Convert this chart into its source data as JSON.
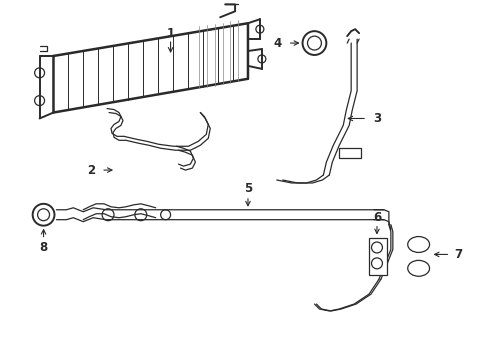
{
  "background_color": "#ffffff",
  "line_color": "#2a2a2a",
  "lw_main": 1.4,
  "lw_thin": 0.9,
  "lw_thick": 1.8,
  "figsize": [
    4.89,
    3.6
  ],
  "dpi": 100,
  "label_fontsize": 8.5
}
